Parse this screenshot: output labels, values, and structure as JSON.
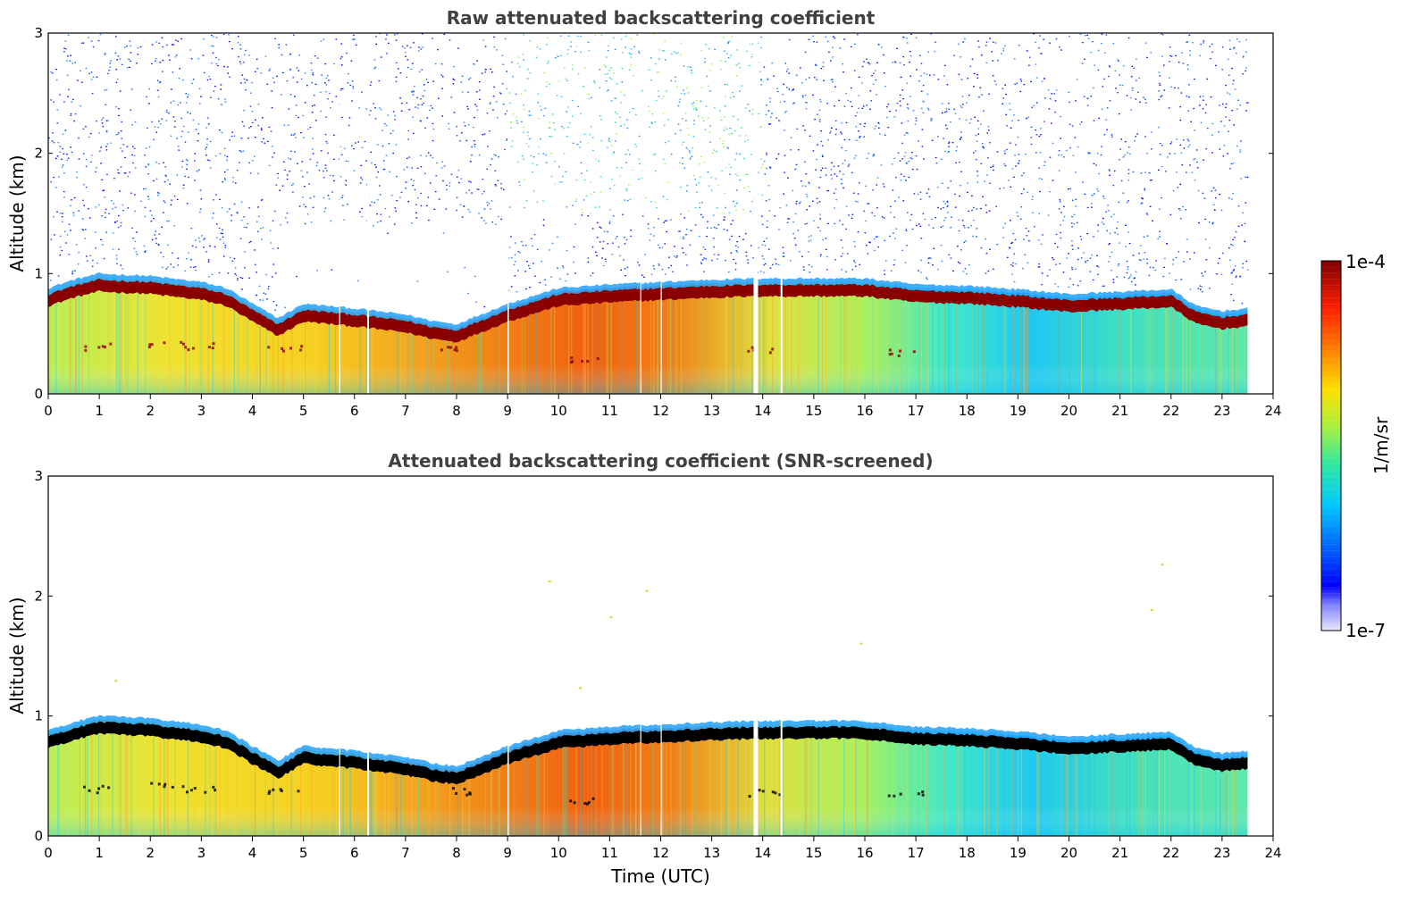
{
  "chart_data": [
    {
      "type": "heatmap",
      "title": "Raw attenuated backscattering coefficient",
      "xlabel": "",
      "ylabel": "Altitude (km)",
      "xlim": [
        0,
        24
      ],
      "ylim": [
        0,
        3
      ],
      "xticks": [
        "0",
        "1",
        "2",
        "3",
        "4",
        "5",
        "6",
        "7",
        "8",
        "9",
        "10",
        "11",
        "12",
        "13",
        "14",
        "15",
        "16",
        "17",
        "18",
        "19",
        "20",
        "21",
        "22",
        "23",
        "24"
      ],
      "yticks": [
        "0",
        "1",
        "2",
        "3"
      ],
      "data_end_time": 23.5,
      "screened": false,
      "layer_top_km": {
        "time": [
          0,
          0.5,
          1,
          2,
          3,
          3.5,
          4,
          4.5,
          5,
          6,
          7,
          7.5,
          8,
          9,
          10,
          11,
          12,
          13,
          14,
          15,
          16,
          17,
          18,
          19,
          20,
          21,
          22,
          22.5,
          23,
          23.5
        ],
        "altitude": [
          0.85,
          0.92,
          0.97,
          0.95,
          0.9,
          0.85,
          0.72,
          0.6,
          0.72,
          0.68,
          0.63,
          0.58,
          0.55,
          0.72,
          0.85,
          0.88,
          0.9,
          0.92,
          0.93,
          0.93,
          0.93,
          0.88,
          0.87,
          0.84,
          0.8,
          0.82,
          0.84,
          0.7,
          0.66,
          0.68
        ]
      }
    },
    {
      "type": "heatmap",
      "title": "Attenuated backscattering coefficient (SNR-screened)",
      "xlabel": "Time (UTC)",
      "ylabel": "Altitude (km)",
      "xlim": [
        0,
        24
      ],
      "ylim": [
        0,
        3
      ],
      "xticks": [
        "0",
        "1",
        "2",
        "3",
        "4",
        "5",
        "6",
        "7",
        "8",
        "9",
        "10",
        "11",
        "12",
        "13",
        "14",
        "15",
        "16",
        "17",
        "18",
        "19",
        "20",
        "21",
        "22",
        "23",
        "24"
      ],
      "yticks": [
        "0",
        "1",
        "2",
        "3"
      ],
      "data_end_time": 23.5,
      "screened": true,
      "layer_top_km": {
        "time": [
          0,
          0.5,
          1,
          2,
          3,
          3.5,
          4,
          4.5,
          5,
          6,
          7,
          7.5,
          8,
          9,
          10,
          11,
          12,
          13,
          14,
          15,
          16,
          17,
          18,
          19,
          20,
          21,
          22,
          22.5,
          23,
          23.5
        ],
        "altitude": [
          0.85,
          0.92,
          0.97,
          0.95,
          0.9,
          0.85,
          0.72,
          0.6,
          0.72,
          0.68,
          0.63,
          0.58,
          0.55,
          0.72,
          0.85,
          0.88,
          0.9,
          0.92,
          0.93,
          0.93,
          0.93,
          0.88,
          0.87,
          0.84,
          0.8,
          0.82,
          0.84,
          0.7,
          0.66,
          0.68
        ]
      }
    }
  ],
  "colorbar": {
    "max_label": "1e-4",
    "min_label": "1e-7",
    "unit": "1/m/sr",
    "scale": "log",
    "colormap": "jet"
  }
}
